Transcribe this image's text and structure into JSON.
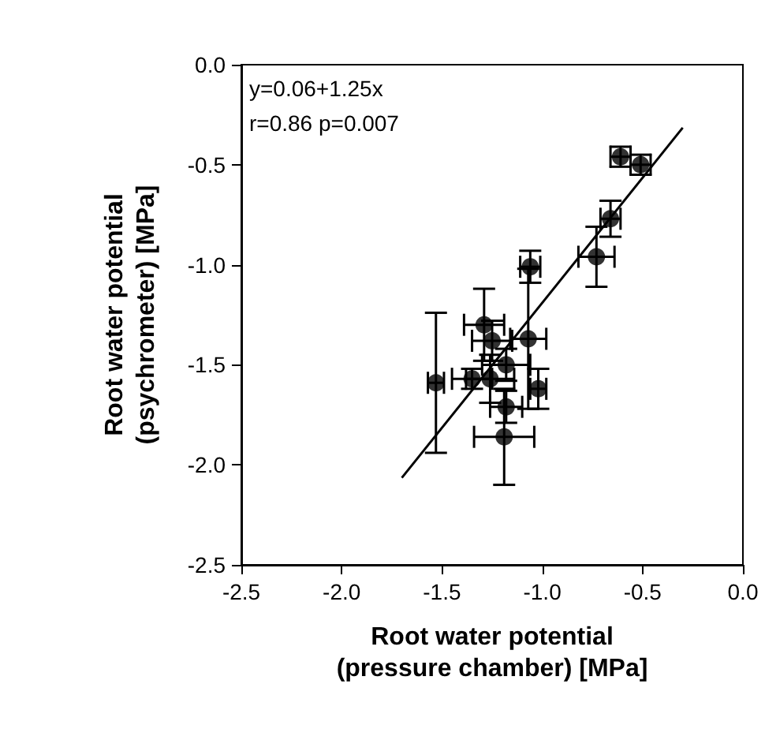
{
  "chart_data": {
    "type": "scatter",
    "xlabel": "Root water potential\n(pressure chamber) [MPa]",
    "ylabel": "Root water potential\n(psychrometer) [MPa]",
    "annotations": [
      "y=0.06+1.25x",
      "r=0.86 p=0.007"
    ],
    "xlim": [
      -2.5,
      0
    ],
    "ylim": [
      -2.5,
      0
    ],
    "xticks": [
      {
        "value": -2.5,
        "label": "-2.5"
      },
      {
        "value": -2,
        "label": "-2.0"
      },
      {
        "value": -1.5,
        "label": "-1.5"
      },
      {
        "value": -1,
        "label": "-1.0"
      },
      {
        "value": -0.5,
        "label": "-0.5"
      },
      {
        "value": 0,
        "label": "0.0"
      }
    ],
    "yticks": [
      {
        "value": -2.5,
        "label": "-2.5"
      },
      {
        "value": -2,
        "label": "-2.0"
      },
      {
        "value": -1.5,
        "label": "-1.5"
      },
      {
        "value": -1,
        "label": "-1.0"
      },
      {
        "value": -0.5,
        "label": "-0.5"
      },
      {
        "value": 0,
        "label": "0.0"
      }
    ],
    "grid": false,
    "series": [
      {
        "color": "#000000",
        "marker": "circle",
        "x": [
          -0.61,
          -0.51,
          -0.66,
          -0.73,
          -1.06,
          -1.29,
          -1.25,
          -1.07,
          -1.18,
          -1.53,
          -1.35,
          -1.26,
          -1.02,
          -1.18,
          -1.19
        ],
        "values": [
          -0.46,
          -0.5,
          -0.77,
          -0.96,
          -1.01,
          -1.3,
          -1.38,
          -1.37,
          -1.5,
          -1.59,
          -1.57,
          -1.57,
          -1.62,
          -1.71,
          -1.86
        ],
        "errors": [
          0.05,
          0.05,
          0.09,
          0.15,
          0.08,
          0.18,
          0.1,
          0.35,
          0.08,
          0.35,
          0.05,
          0.12,
          0.1,
          0.08,
          0.24
        ],
        "xerrors": [
          0.05,
          0.05,
          0.05,
          0.09,
          0.05,
          0.1,
          0.1,
          0.09,
          0.12,
          0.04,
          0.1,
          0.12,
          0.04,
          0.08,
          0.15
        ]
      },
      {
        "type": "line",
        "color": "#000000",
        "x": [
          -1.7,
          -0.3
        ],
        "values": [
          -2.065,
          -0.315
        ]
      }
    ]
  }
}
